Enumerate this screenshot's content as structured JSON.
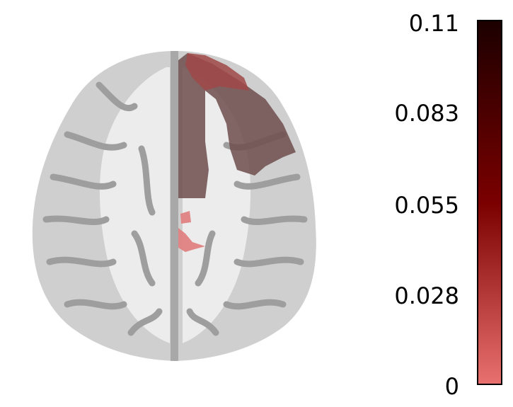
{
  "colorbar": {
    "ticks": [
      "0.11",
      "0.083",
      "0.055",
      "0.028",
      "0"
    ],
    "min": 0,
    "max": 0.11,
    "colors": {
      "low": "#e8706e",
      "mid": "#7a0000",
      "high": "#1c0000"
    }
  },
  "overlay": {
    "colors": {
      "frontal_region": "#6e4e4e",
      "frontal_pole": "#a04848",
      "posterior_blobs": "#e07c7c"
    }
  },
  "brain": {
    "colors": {
      "tissue": "#cfcfcf",
      "white_matter": "#efefef",
      "sulci": "#9a9a9a"
    }
  }
}
